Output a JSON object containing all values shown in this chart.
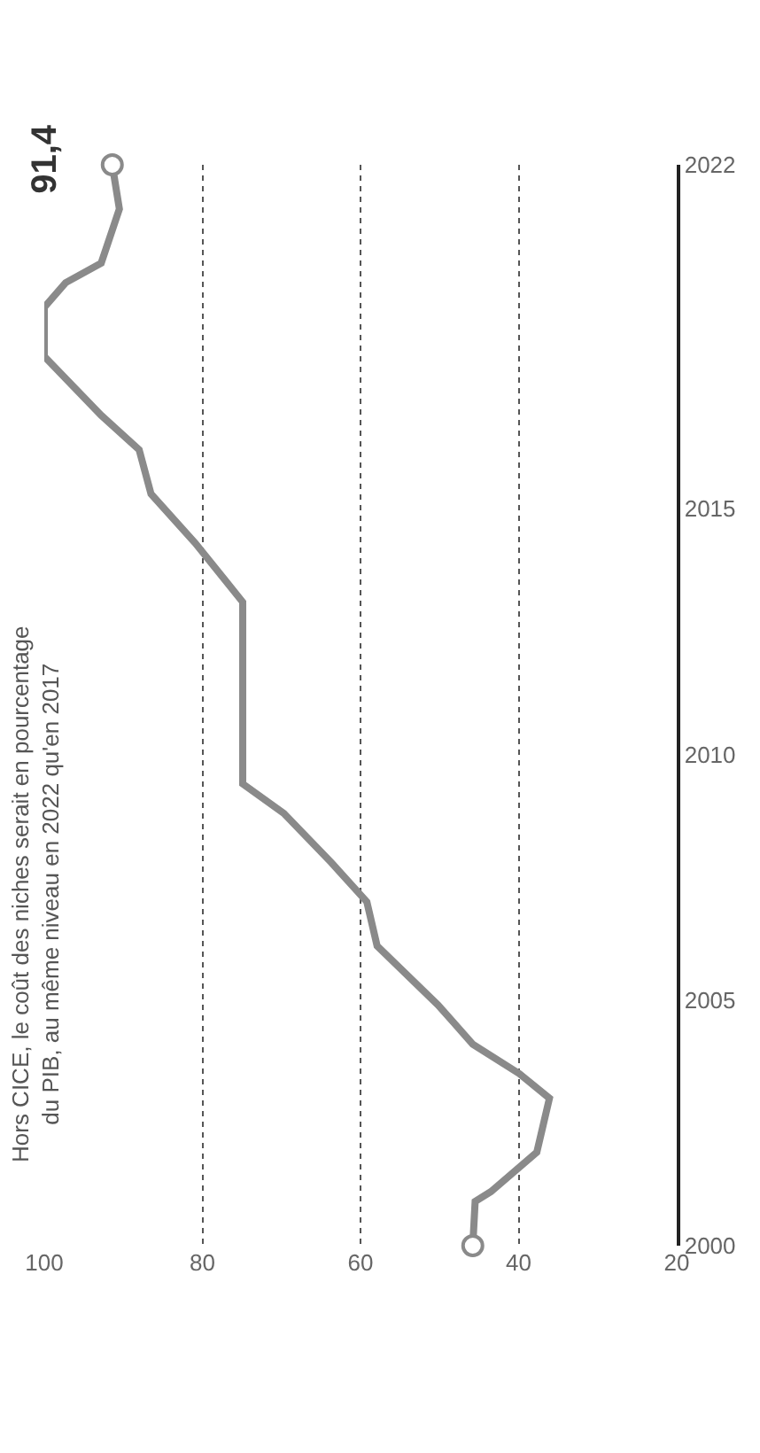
{
  "chart_data": {
    "type": "line",
    "title": "Hors CICE, le coût des niches serait en pourcentage\ndu PIB, au même niveau en 2022 qu'en 2017",
    "x": [
      45.8,
      45.5,
      43.5,
      37.7,
      36.1,
      39.9,
      45.8,
      50.2,
      57.9,
      59.2,
      63.7,
      69.7,
      74.9,
      74.9,
      80.9,
      86.5,
      88,
      92.8,
      100,
      100,
      97.3,
      92.8,
      90.5,
      91.4
    ],
    "series": [
      {
        "color": "#8a8a8a",
        "values": [
          2000,
          2000.9,
          2001.1,
          2001.9,
          2003.0,
          2003.5,
          2004.1,
          2004.9,
          2006.1,
          2007.0,
          2007.8,
          2008.8,
          2009.4,
          2013.1,
          2014.3,
          2015.3,
          2016.2,
          2016.9,
          2018.1,
          2019.1,
          2019.6,
          2020.0,
          2021.1,
          2022
        ]
      },
      {
        "type": "scatter",
        "marker": "circle",
        "color": "#8a8a8a",
        "x": [
          45.8,
          91.4
        ],
        "values": [
          2000,
          2022
        ]
      }
    ],
    "xlim": [
      100,
      20
    ],
    "xticks": [
      20,
      40,
      60,
      80,
      100
    ],
    "ylim": [
      2000,
      2022
    ],
    "yticks": [
      2000,
      2005,
      2010,
      2015,
      2022
    ],
    "grid": "x",
    "line_style": "solid",
    "legend": false,
    "annotations": [
      {
        "text": "91,4",
        "x": 91.4,
        "y": 2022
      }
    ]
  }
}
